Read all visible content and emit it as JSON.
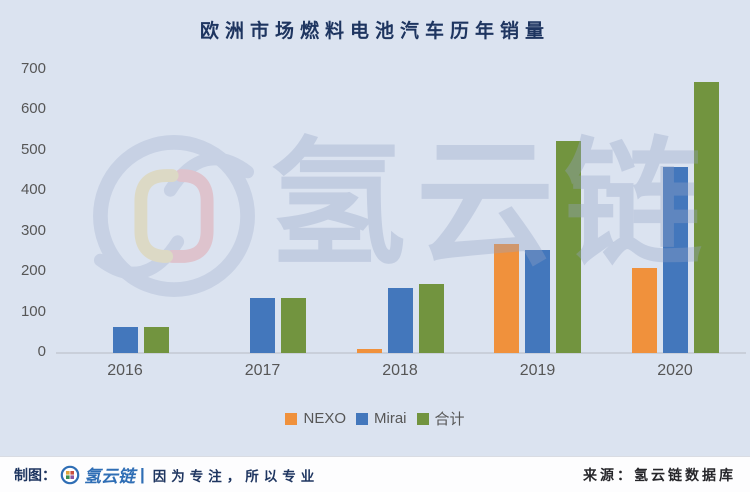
{
  "title": "欧洲市场燃料电池汽车历年销量",
  "chart_data": {
    "type": "bar",
    "title": "欧洲市场燃料电池汽车历年销量",
    "categories": [
      "2016",
      "2017",
      "2018",
      "2019",
      "2020"
    ],
    "series": [
      {
        "name": "NEXO",
        "color": "#F0913C",
        "values": [
          0,
          0,
          10,
          270,
          210
        ]
      },
      {
        "name": "Mirai",
        "color": "#4377BC",
        "values": [
          65,
          135,
          160,
          255,
          460
        ]
      },
      {
        "name": "合计",
        "color": "#72943F",
        "values": [
          65,
          135,
          170,
          525,
          670
        ]
      }
    ],
    "xlabel": "",
    "ylabel": "",
    "ylim": [
      0,
      700
    ],
    "yticks": [
      0,
      100,
      200,
      300,
      400,
      500,
      600,
      700
    ],
    "grid": false,
    "legend_position": "bottom"
  },
  "watermark": {
    "logo": "hydrogen-cloud-chain-logo",
    "text": "氢云链"
  },
  "footer": {
    "made_by_label": "制图：",
    "brand": "氢云链",
    "separator": "|",
    "slogan": "因为专注，所以专业",
    "source": "来源：氢云链数据库"
  },
  "colors": {
    "background": "#DBE3F0",
    "footer_background": "#FDFDFE",
    "title_text": "#1E3560",
    "axis_text": "#565656",
    "baseline": "#C9CFDA",
    "brand_blue": "#2F6EB5",
    "nexo_orange": "#F0913C",
    "mirai_blue": "#4377BC",
    "total_green": "#72943F",
    "watermark": "#9AA9C8"
  }
}
